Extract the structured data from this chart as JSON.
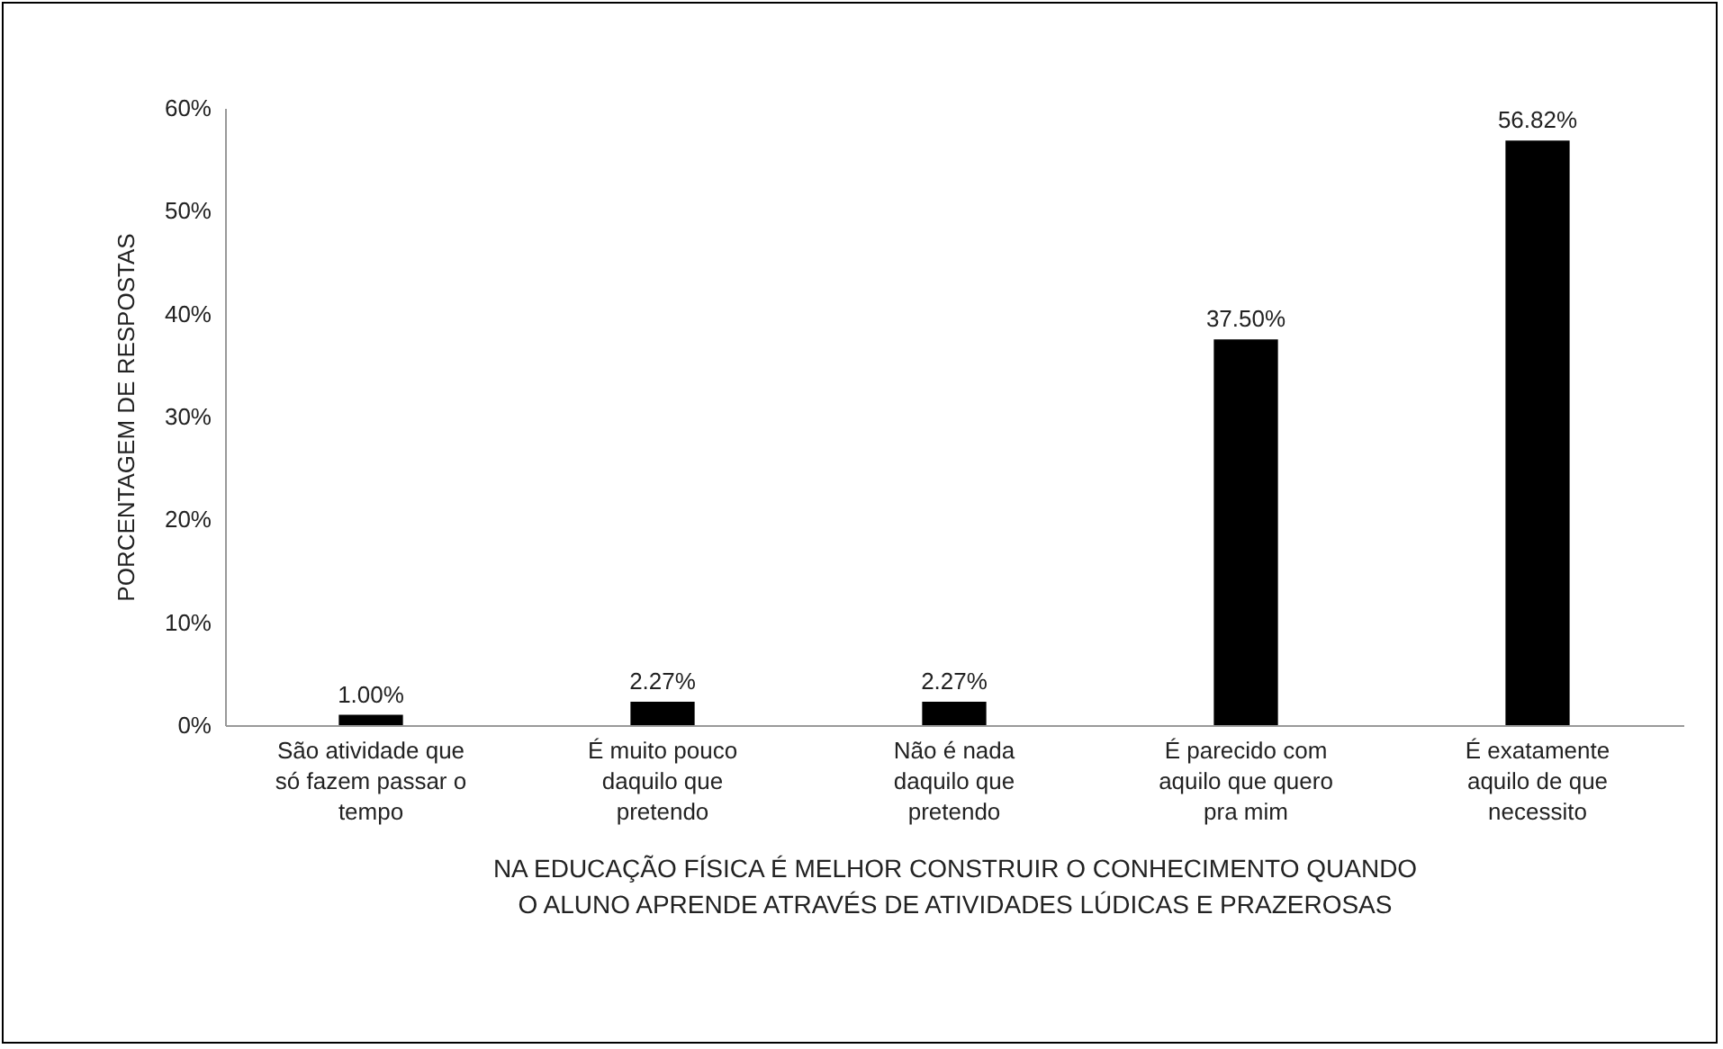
{
  "chart_data": {
    "type": "bar",
    "categories": [
      "São atividade que só fazem passar o tempo",
      "É muito pouco daquilo que pretendo",
      "Não é nada daquilo que pretendo",
      "É parecido com aquilo que quero pra mim",
      "É exatamente aquilo de que necessito"
    ],
    "values": [
      1.0,
      2.27,
      2.27,
      37.5,
      56.82
    ],
    "value_labels": [
      "1.00%",
      "2.27%",
      "2.27%",
      "37.50%",
      "56.82%"
    ],
    "color": "#000000",
    "ylabel": "PORCENTAGEM DE RESPOSTAS",
    "xlabel": "NA EDUCAÇÃO FÍSICA É MELHOR CONSTRUIR O CONHECIMENTO QUANDO\nO ALUNO APRENDE ATRAVÉS DE ATIVIDADES LÚDICAS E PRAZEROSAS",
    "ylim": [
      0,
      60
    ],
    "yticks": [
      {
        "value": 0,
        "label": "0%"
      },
      {
        "value": 10,
        "label": "10%"
      },
      {
        "value": 20,
        "label": "20%"
      },
      {
        "value": 30,
        "label": "30%"
      },
      {
        "value": 40,
        "label": "40%"
      },
      {
        "value": 50,
        "label": "50%"
      },
      {
        "value": 60,
        "label": "60%"
      }
    ],
    "grid": false
  }
}
